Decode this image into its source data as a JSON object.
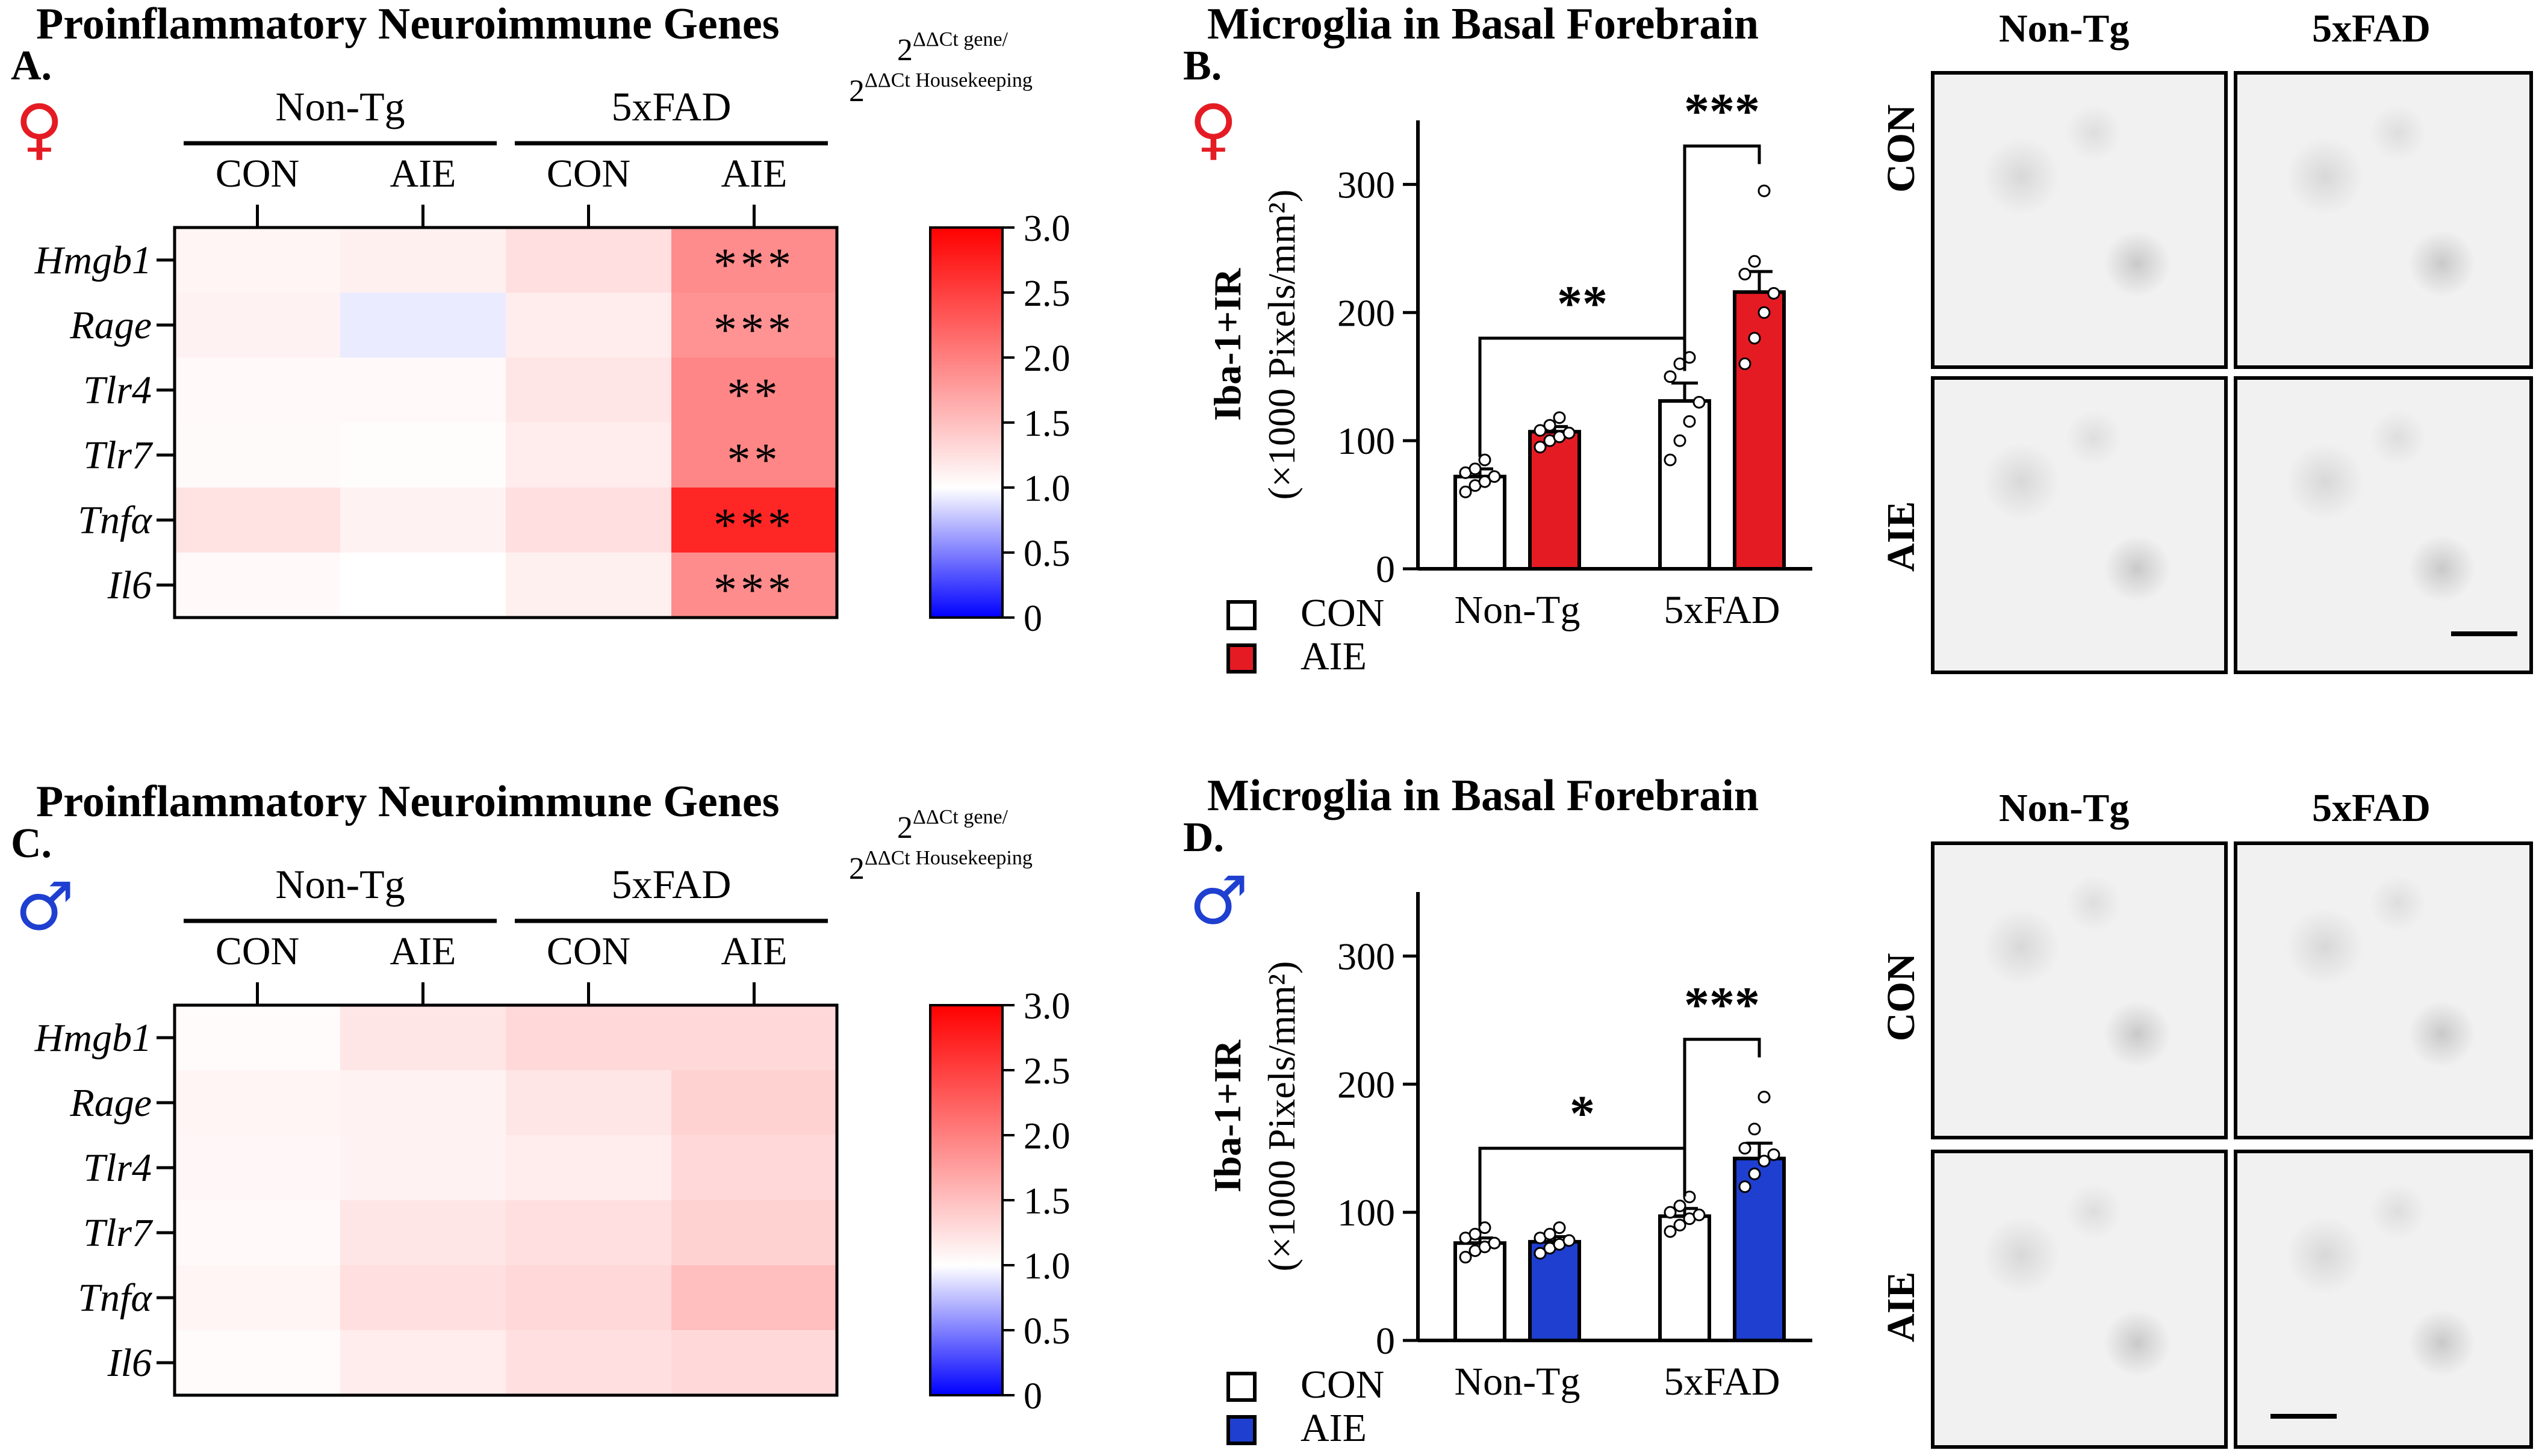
{
  "colors": {
    "female": "#e51b24",
    "male": "#1f3fd0",
    "heat_low": "#0000ff",
    "heat_mid": "#ffffff",
    "heat_high": "#ff0000"
  },
  "heatmap_legend": {
    "ticks": [
      "3.0",
      "2.5",
      "2.0",
      "1.5",
      "1.0",
      "0.5",
      "0"
    ],
    "label_line1": "2",
    "label_line1_sup": "ΔΔCt gene",
    "label_line1_tail": "/",
    "label_line2": "2",
    "label_line2_sup": "ΔΔCt Housekeeping"
  },
  "micrograph_labels": {
    "col1": "Non-Tg",
    "col2": "5xFAD",
    "row1": "CON",
    "row2": "AIE"
  },
  "chart_data": [
    {
      "panel": "A.",
      "type": "heatmap",
      "title": "Proinflammatory Neuroimmune Genes",
      "sex_symbol": "♀",
      "sex": "female",
      "groups": [
        "Non-Tg",
        "5xFAD"
      ],
      "columns": [
        "CON",
        "AIE",
        "CON",
        "AIE"
      ],
      "rows": [
        "Hmgb1",
        "Rage",
        "Tlr4",
        "Tlr7",
        "Tnfα",
        "Il6"
      ],
      "values": [
        [
          1.08,
          1.12,
          1.25,
          1.9
        ],
        [
          1.1,
          0.92,
          1.15,
          1.85
        ],
        [
          1.05,
          1.05,
          1.2,
          1.95
        ],
        [
          1.04,
          1.02,
          1.15,
          1.95
        ],
        [
          1.22,
          1.1,
          1.25,
          2.7
        ],
        [
          1.05,
          1.0,
          1.12,
          1.9
        ]
      ],
      "significance": [
        [
          "",
          "",
          "",
          "***"
        ],
        [
          "",
          "",
          "",
          "***"
        ],
        [
          "",
          "",
          "",
          "**"
        ],
        [
          "",
          "",
          "",
          "**"
        ],
        [
          "",
          "",
          "",
          "***"
        ],
        [
          "",
          "",
          "",
          "***"
        ]
      ],
      "scale": [
        0,
        3
      ]
    },
    {
      "panel": "B.",
      "type": "bar",
      "title": "Microglia in Basal Forebrain",
      "sex_symbol": "♀",
      "sex": "female",
      "ylabel": "Iba-1+IR",
      "ylabel2": "(×1000 Pixels/mm²)",
      "ylim": [
        0,
        350
      ],
      "yticks": [
        "0",
        "100",
        "200",
        "300"
      ],
      "categories": [
        "Non-Tg",
        "5xFAD"
      ],
      "series": [
        {
          "name": "CON",
          "values": [
            72,
            131
          ],
          "sem": [
            6,
            14
          ],
          "points": [
            [
              60,
              65,
              68,
              72,
              75,
              78,
              85
            ],
            [
              85,
              100,
              115,
              130,
              150,
              160,
              165
            ]
          ]
        },
        {
          "name": "AIE",
          "values": [
            107,
            216
          ],
          "sem": [
            4,
            16
          ],
          "points": [
            [
              95,
              100,
              103,
              106,
              108,
              112,
              118
            ],
            [
              160,
              180,
              200,
              215,
              230,
              240,
              295
            ]
          ]
        }
      ],
      "annotations": [
        {
          "text": "**",
          "between": "CON Non-Tg vs CON 5xFAD"
        },
        {
          "text": "***",
          "between": "CON 5xFAD vs AIE 5xFAD"
        }
      ],
      "legend": [
        "CON",
        "AIE"
      ]
    },
    {
      "panel": "C.",
      "type": "heatmap",
      "title": "Proinflammatory Neuroimmune Genes",
      "sex_symbol": "♂",
      "sex": "male",
      "groups": [
        "Non-Tg",
        "5xFAD"
      ],
      "columns": [
        "CON",
        "AIE",
        "CON",
        "AIE"
      ],
      "rows": [
        "Hmgb1",
        "Rage",
        "Tlr4",
        "Tlr7",
        "Tnfα",
        "Il6"
      ],
      "values": [
        [
          1.03,
          1.2,
          1.3,
          1.3
        ],
        [
          1.08,
          1.1,
          1.2,
          1.35
        ],
        [
          1.06,
          1.1,
          1.15,
          1.3
        ],
        [
          1.05,
          1.2,
          1.25,
          1.35
        ],
        [
          1.08,
          1.25,
          1.3,
          1.5
        ],
        [
          1.03,
          1.15,
          1.25,
          1.3
        ]
      ],
      "significance": [
        [
          "",
          "",
          "",
          ""
        ],
        [
          "",
          "",
          "",
          ""
        ],
        [
          "",
          "",
          "",
          ""
        ],
        [
          "",
          "",
          "",
          ""
        ],
        [
          "",
          "",
          "",
          ""
        ],
        [
          "",
          "",
          "",
          ""
        ]
      ],
      "scale": [
        0,
        3
      ]
    },
    {
      "panel": "D.",
      "type": "bar",
      "title": "Microglia in Basal Forebrain",
      "sex_symbol": "♂",
      "sex": "male",
      "ylabel": "Iba-1+IR",
      "ylabel2": "(×1000 Pixels/mm²)",
      "ylim": [
        0,
        350
      ],
      "yticks": [
        "0",
        "100",
        "200",
        "300"
      ],
      "categories": [
        "Non-Tg",
        "5xFAD"
      ],
      "series": [
        {
          "name": "CON",
          "values": [
            76,
            97
          ],
          "sem": [
            4,
            6
          ],
          "points": [
            [
              65,
              70,
              73,
              76,
              80,
              83,
              88
            ],
            [
              85,
              90,
              95,
              98,
              100,
              105,
              112
            ]
          ]
        },
        {
          "name": "AIE",
          "values": [
            77,
            142
          ],
          "sem": [
            4,
            12
          ],
          "points": [
            [
              68,
              72,
              75,
              78,
              80,
              83,
              88
            ],
            [
              120,
              130,
              140,
              145,
              150,
              165,
              190
            ]
          ]
        }
      ],
      "annotations": [
        {
          "text": "*",
          "between": "CON Non-Tg vs CON 5xFAD"
        },
        {
          "text": "***",
          "between": "CON 5xFAD vs AIE 5xFAD"
        }
      ],
      "legend": [
        "CON",
        "AIE"
      ]
    }
  ]
}
